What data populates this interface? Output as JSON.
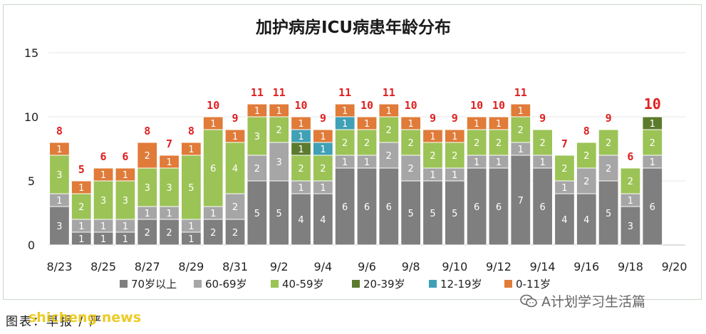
{
  "chart_data": {
    "type": "bar",
    "stacked": true,
    "title": "加护病房ICU病患年龄分布",
    "categories": [
      "8/23",
      "8/24",
      "8/25",
      "8/26",
      "8/27",
      "8/28",
      "8/29",
      "8/30",
      "8/31",
      "9/1",
      "9/2",
      "9/3",
      "9/4",
      "9/5",
      "9/6",
      "9/7",
      "9/8",
      "9/9",
      "9/10",
      "9/11",
      "9/12",
      "9/13",
      "9/14",
      "9/15",
      "9/16",
      "9/17",
      "9/18",
      "9/19",
      "9/20"
    ],
    "x_tick_labels": [
      "8/23",
      "8/25",
      "8/27",
      "8/29",
      "8/31",
      "9/2",
      "9/4",
      "9/6",
      "9/8",
      "9/10",
      "9/12",
      "9/14",
      "9/16",
      "9/18",
      "9/20"
    ],
    "ylim": [
      0,
      15
    ],
    "yticks": [
      0,
      5,
      10,
      15
    ],
    "series": [
      {
        "name": "70岁以上",
        "color": "#7f7f7f",
        "values": [
          3,
          1,
          1,
          1,
          2,
          2,
          1,
          2,
          2,
          5,
          5,
          4,
          4,
          6,
          6,
          6,
          5,
          5,
          5,
          6,
          6,
          7,
          6,
          4,
          4,
          5,
          3,
          6,
          null
        ]
      },
      {
        "name": "60-69岁",
        "color": "#a6a6a6",
        "values": [
          1,
          1,
          1,
          1,
          1,
          1,
          1,
          1,
          2,
          2,
          3,
          1,
          1,
          1,
          1,
          2,
          2,
          1,
          1,
          1,
          1,
          1,
          1,
          1,
          2,
          2,
          1,
          1,
          null
        ]
      },
      {
        "name": "40-59岁",
        "color": "#9bc356",
        "values": [
          3,
          2,
          3,
          3,
          3,
          3,
          5,
          6,
          4,
          3,
          2,
          2,
          2,
          2,
          2,
          2,
          2,
          2,
          2,
          2,
          2,
          2,
          2,
          2,
          2,
          2,
          2,
          2,
          null
        ]
      },
      {
        "name": "20-39岁",
        "color": "#5c7a2e",
        "values": [
          0,
          0,
          0,
          0,
          0,
          0,
          0,
          0,
          0,
          0,
          0,
          1,
          0,
          0,
          0,
          0,
          0,
          0,
          0,
          0,
          0,
          0,
          0,
          0,
          0,
          0,
          0,
          1,
          null
        ]
      },
      {
        "name": "12-19岁",
        "color": "#3fa0b6",
        "values": [
          0,
          0,
          0,
          0,
          0,
          0,
          0,
          0,
          0,
          0,
          0,
          1,
          1,
          1,
          0,
          0,
          0,
          0,
          0,
          0,
          0,
          0,
          0,
          0,
          0,
          0,
          0,
          0,
          null
        ]
      },
      {
        "name": "0-11岁",
        "color": "#e07b39",
        "values": [
          1,
          1,
          1,
          1,
          2,
          1,
          1,
          1,
          1,
          1,
          1,
          1,
          1,
          1,
          1,
          1,
          1,
          1,
          1,
          1,
          1,
          1,
          0,
          0,
          0,
          0,
          0,
          0,
          null
        ]
      }
    ],
    "totals": [
      8,
      5,
      6,
      6,
      8,
      7,
      8,
      10,
      9,
      11,
      11,
      10,
      9,
      11,
      10,
      11,
      10,
      9,
      9,
      10,
      10,
      11,
      9,
      7,
      8,
      9,
      6,
      10,
      null
    ],
    "legend_position": "bottom",
    "grid": true
  },
  "footer": {
    "source_note": "图表：早报 / 严",
    "watermark_top": "shicheng news",
    "wechat_tag": "A计划学习生活篇"
  }
}
